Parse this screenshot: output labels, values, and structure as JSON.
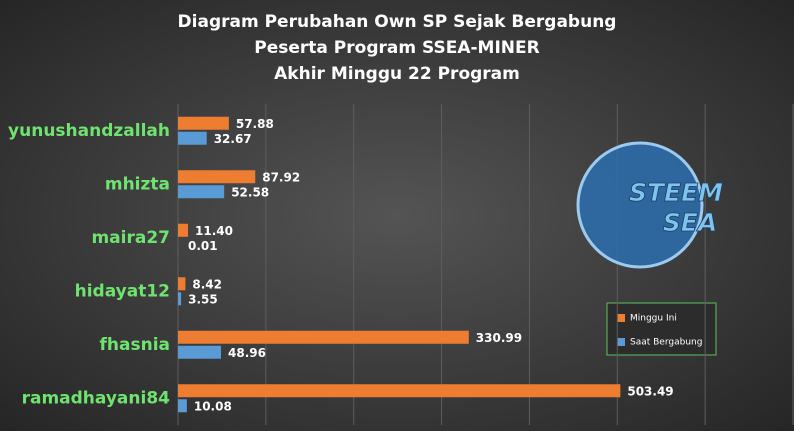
{
  "chart_data": {
    "type": "hbar",
    "title": [
      "Diagram  Perubahan  Own  SP  Sejak  Bergabung",
      "Peserta  Program  SSEA-MINER",
      "Akhir  Minggu  22  Program"
    ],
    "categories": [
      "yunushandzallah",
      "mhizta",
      "maira27",
      "hidayat12",
      "fhasnia",
      "ramadhayani84"
    ],
    "series": [
      {
        "name": "Minggu Ini",
        "color": "#ed7d31",
        "values": [
          57.88,
          87.92,
          11.4,
          8.42,
          330.99,
          503.49
        ],
        "value_labels": [
          "57.88",
          "87.92",
          "11.40",
          "8.42",
          "330.99",
          "503.49"
        ]
      },
      {
        "name": "Saat Bergabung",
        "color": "#5b9bd5",
        "values": [
          32.67,
          52.58,
          0.01,
          3.55,
          48.96,
          10.08
        ]
      }
    ],
    "xlim": [
      0,
      700
    ],
    "xticks": [
      0,
      100,
      200,
      300,
      400,
      500,
      600,
      700
    ],
    "grid": true,
    "annotations": [
      "STEEM",
      "SEA"
    ]
  }
}
